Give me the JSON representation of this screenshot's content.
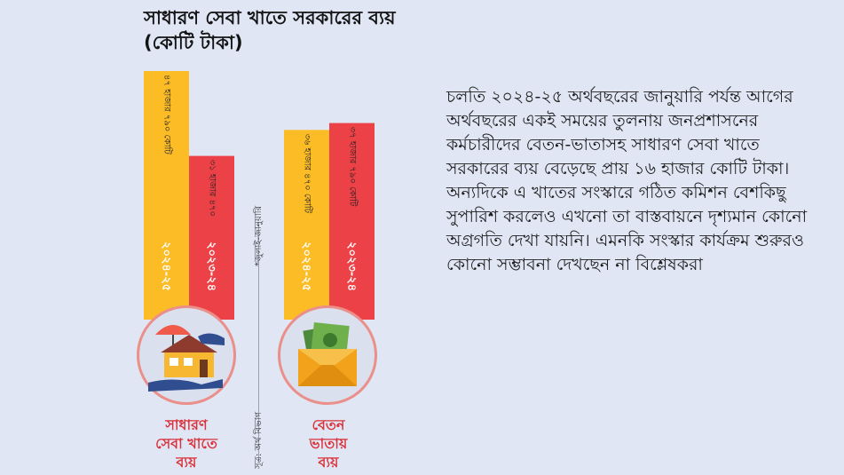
{
  "title": "সাধারণ সেবা খাতে সরকারের ব্যয় (কোটি টাকা)",
  "chart_data": {
    "type": "bar",
    "title": "সাধারণ সেবা খাতে সরকারের ব্যয় (কোটি টাকা)",
    "groups": [
      {
        "name": "সাধারণ সেবা খাতে ব্যয়",
        "bars": [
          {
            "year": "২০২৪-২৫",
            "value": 47790,
            "label": "৪৭ হাজার ৭৯০ কোটি",
            "color": "#fbbc26"
          },
          {
            "year": "২০২৩-২৪",
            "value": 31470,
            "label": "৩১ হাজার ৪৭০",
            "color": "#ec4146"
          }
        ]
      },
      {
        "name": "বেতন ভাতায় ব্যয়",
        "bars": [
          {
            "year": "২০২৪-২৫",
            "value": 36470,
            "label": "৩৬ হাজার ৪৭০ কোটি",
            "color": "#fbbc26"
          },
          {
            "year": "২০২৩-২৪",
            "value": 37790,
            "label": "৩৭ হাজার ৭৯০ কোটি",
            "color": "#ec4146"
          }
        ]
      }
    ]
  },
  "period_note": "*জুলাই-জানুয়ারি",
  "source_note": "সূত্র: অর্থ বিভাগ",
  "labels": {
    "left": [
      "সাধারণ",
      "সেবা খাতে",
      "ব্যয়"
    ],
    "right": [
      "বেতন",
      "ভাতায়",
      "ব্যয়"
    ]
  },
  "icons": {
    "left": "house-hand-umbrella-icon",
    "right": "money-envelope-icon"
  },
  "paragraph": "চলতি ২০২৪-২৫ অর্থবছরের জানুয়ারি পর্যন্ত আগের অর্থবছরের একই সময়ের তুলনায় জনপ্রশাসনের কর্মচারীদের বেতন-ভাতাসহ সাধারণ সেবা খাতে সরকারের ব্যয় বেড়েছে প্রায় ১৬ হাজার কোটি টাকা। অন্যদিকে এ খাতের সংস্কারে গঠিত কমিশন বেশকিছু সুপারিশ করলেও এখনো তা বাস্তবায়নে দৃশ্যমান কোনো অগ্রগতি দেখা যায়নি। এমনকি সংস্কার কার্যক্রম শুরুরও কোনো সম্ভাবনা দেখছেন না বিশ্লেষকরা"
}
